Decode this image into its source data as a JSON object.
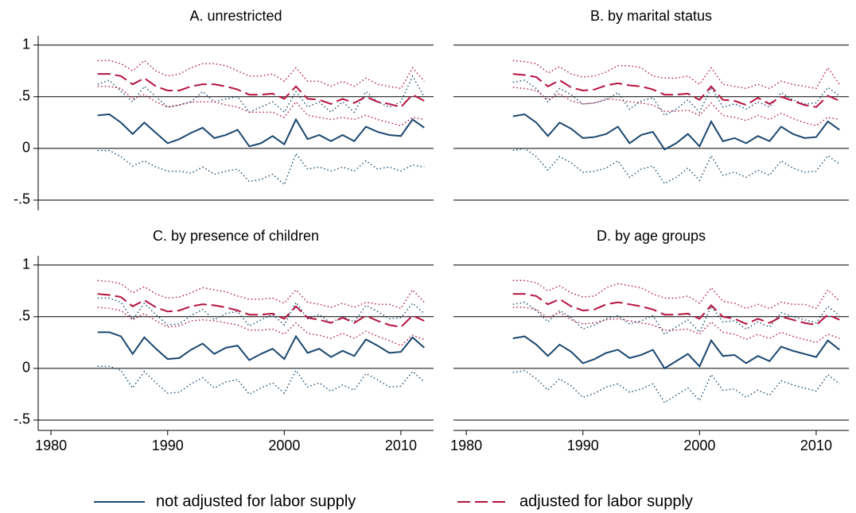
{
  "chart_data": [
    {
      "type": "line",
      "title": "A. unrestricted",
      "x": [
        1984,
        1985,
        1986,
        1987,
        1988,
        1989,
        1990,
        1991,
        1992,
        1993,
        1994,
        1995,
        1996,
        1997,
        1998,
        1999,
        2000,
        2001,
        2002,
        2003,
        2004,
        2005,
        2006,
        2007,
        2008,
        2009,
        2010,
        2011,
        2012
      ],
      "xlim": [
        1978.9,
        2012.8
      ],
      "ylim": [
        -0.6,
        1.09
      ],
      "yticks": [
        1,
        {
          "value": 0.5,
          "label": ".5"
        },
        0,
        {
          "value": -0.5,
          "label": "-.5"
        }
      ],
      "grid": true,
      "series": [
        {
          "name": "not adjusted for labor supply",
          "color": "#1a476f",
          "dash": "solid",
          "values": [
            0.32,
            0.33,
            0.25,
            0.14,
            0.25,
            0.15,
            0.05,
            0.09,
            0.15,
            0.2,
            0.1,
            0.13,
            0.18,
            0.02,
            0.05,
            0.12,
            0.04,
            0.28,
            0.09,
            0.13,
            0.07,
            0.13,
            0.07,
            0.21,
            0.16,
            0.13,
            0.12,
            0.28,
            0.2
          ]
        },
        {
          "name": "adjusted for labor supply",
          "color": "#b5123e",
          "dash": "dash",
          "values": [
            0.72,
            0.72,
            0.7,
            0.62,
            0.68,
            0.6,
            0.56,
            0.56,
            0.6,
            0.62,
            0.62,
            0.6,
            0.57,
            0.52,
            0.52,
            0.53,
            0.48,
            0.6,
            0.48,
            0.47,
            0.43,
            0.48,
            0.44,
            0.5,
            0.45,
            0.43,
            0.4,
            0.52,
            0.46
          ]
        },
        {
          "color": "#1a476f",
          "dash": "dot",
          "values": [
            0.62,
            0.66,
            0.55,
            0.45,
            0.6,
            0.5,
            0.4,
            0.42,
            0.45,
            0.55,
            0.45,
            0.48,
            0.5,
            0.35,
            0.4,
            0.45,
            0.35,
            0.55,
            0.4,
            0.45,
            0.35,
            0.45,
            0.35,
            0.55,
            0.45,
            0.4,
            0.45,
            0.7,
            0.5
          ]
        },
        {
          "color": "#1a476f",
          "dash": "dot",
          "values": [
            -0.02,
            -0.02,
            -0.08,
            -0.17,
            -0.12,
            -0.18,
            -0.22,
            -0.22,
            -0.24,
            -0.18,
            -0.25,
            -0.22,
            -0.2,
            -0.32,
            -0.3,
            -0.25,
            -0.35,
            -0.05,
            -0.2,
            -0.18,
            -0.22,
            -0.18,
            -0.22,
            -0.12,
            -0.2,
            -0.18,
            -0.22,
            -0.16,
            -0.18
          ]
        },
        {
          "color": "#b5123e",
          "dash": "dot",
          "values": [
            0.85,
            0.85,
            0.82,
            0.75,
            0.85,
            0.75,
            0.7,
            0.72,
            0.78,
            0.82,
            0.82,
            0.8,
            0.75,
            0.7,
            0.7,
            0.72,
            0.65,
            0.78,
            0.65,
            0.65,
            0.6,
            0.65,
            0.6,
            0.68,
            0.62,
            0.6,
            0.58,
            0.78,
            0.65
          ]
        },
        {
          "color": "#b5123e",
          "dash": "dot",
          "values": [
            0.6,
            0.6,
            0.58,
            0.48,
            0.52,
            0.45,
            0.4,
            0.42,
            0.45,
            0.45,
            0.45,
            0.42,
            0.4,
            0.35,
            0.35,
            0.35,
            0.3,
            0.45,
            0.32,
            0.3,
            0.28,
            0.3,
            0.28,
            0.32,
            0.28,
            0.25,
            0.22,
            0.3,
            0.28
          ]
        }
      ]
    },
    {
      "type": "line",
      "title": "B. by marital status",
      "x": [
        1984,
        1985,
        1986,
        1987,
        1988,
        1989,
        1990,
        1991,
        1992,
        1993,
        1994,
        1995,
        1996,
        1997,
        1998,
        1999,
        2000,
        2001,
        2002,
        2003,
        2004,
        2005,
        2006,
        2007,
        2008,
        2009,
        2010,
        2011,
        2012
      ],
      "xlim": [
        1978.9,
        2012.8
      ],
      "ylim": [
        -0.6,
        1.09
      ],
      "yticks": [
        1,
        0.5,
        0,
        -0.5
      ],
      "grid": true,
      "series": [
        {
          "color": "#1a476f",
          "dash": "solid",
          "values": [
            0.31,
            0.33,
            0.25,
            0.12,
            0.25,
            0.19,
            0.1,
            0.11,
            0.14,
            0.21,
            0.05,
            0.13,
            0.16,
            -0.01,
            0.05,
            0.14,
            0.02,
            0.26,
            0.07,
            0.1,
            0.05,
            0.12,
            0.07,
            0.21,
            0.14,
            0.1,
            0.11,
            0.26,
            0.18
          ]
        },
        {
          "color": "#b5123e",
          "dash": "dash",
          "values": [
            0.72,
            0.71,
            0.69,
            0.6,
            0.66,
            0.59,
            0.56,
            0.57,
            0.61,
            0.63,
            0.61,
            0.6,
            0.57,
            0.52,
            0.52,
            0.53,
            0.47,
            0.6,
            0.47,
            0.46,
            0.42,
            0.49,
            0.43,
            0.5,
            0.46,
            0.42,
            0.4,
            0.51,
            0.46
          ]
        },
        {
          "color": "#1a476f",
          "dash": "dot",
          "values": [
            0.64,
            0.66,
            0.58,
            0.45,
            0.58,
            0.52,
            0.43,
            0.44,
            0.47,
            0.54,
            0.38,
            0.46,
            0.49,
            0.32,
            0.38,
            0.47,
            0.35,
            0.59,
            0.4,
            0.43,
            0.38,
            0.45,
            0.4,
            0.54,
            0.47,
            0.43,
            0.44,
            0.59,
            0.51
          ]
        },
        {
          "color": "#1a476f",
          "dash": "dot",
          "values": [
            -0.02,
            0,
            -0.08,
            -0.21,
            -0.08,
            -0.14,
            -0.23,
            -0.22,
            -0.19,
            -0.12,
            -0.28,
            -0.2,
            -0.17,
            -0.34,
            -0.28,
            -0.19,
            -0.31,
            -0.07,
            -0.26,
            -0.23,
            -0.28,
            -0.21,
            -0.26,
            -0.12,
            -0.19,
            -0.23,
            -0.22,
            -0.07,
            -0.15
          ]
        },
        {
          "color": "#b5123e",
          "dash": "dot",
          "values": [
            0.85,
            0.84,
            0.82,
            0.73,
            0.79,
            0.72,
            0.69,
            0.7,
            0.74,
            0.8,
            0.8,
            0.78,
            0.7,
            0.68,
            0.68,
            0.7,
            0.62,
            0.78,
            0.62,
            0.6,
            0.58,
            0.62,
            0.58,
            0.65,
            0.62,
            0.6,
            0.58,
            0.78,
            0.62
          ]
        },
        {
          "color": "#b5123e",
          "dash": "dot",
          "values": [
            0.59,
            0.58,
            0.56,
            0.47,
            0.53,
            0.46,
            0.43,
            0.44,
            0.48,
            0.47,
            0.45,
            0.44,
            0.42,
            0.36,
            0.36,
            0.37,
            0.32,
            0.44,
            0.32,
            0.3,
            0.27,
            0.32,
            0.28,
            0.34,
            0.29,
            0.25,
            0.22,
            0.3,
            0.28
          ]
        }
      ]
    },
    {
      "type": "line",
      "title": "C. by presence of children",
      "x": [
        1984,
        1985,
        1986,
        1987,
        1988,
        1989,
        1990,
        1991,
        1992,
        1993,
        1994,
        1995,
        1996,
        1997,
        1998,
        1999,
        2000,
        2001,
        2002,
        2003,
        2004,
        2005,
        2006,
        2007,
        2008,
        2009,
        2010,
        2011,
        2012
      ],
      "xlim": [
        1978.9,
        2012.8
      ],
      "ylim": [
        -0.6,
        1.09
      ],
      "xticks": [
        1980,
        1990,
        2000,
        2010
      ],
      "yticks": [
        1,
        {
          "value": 0.5,
          "label": ".5"
        },
        0,
        {
          "value": -0.5,
          "label": "-.5"
        }
      ],
      "grid": true,
      "series": [
        {
          "color": "#1a476f",
          "dash": "solid",
          "values": [
            0.35,
            0.35,
            0.31,
            0.14,
            0.3,
            0.19,
            0.09,
            0.1,
            0.18,
            0.24,
            0.14,
            0.2,
            0.22,
            0.08,
            0.14,
            0.19,
            0.09,
            0.31,
            0.15,
            0.19,
            0.11,
            0.17,
            0.12,
            0.28,
            0.22,
            0.15,
            0.16,
            0.3,
            0.2
          ]
        },
        {
          "color": "#b5123e",
          "dash": "dash",
          "values": [
            0.72,
            0.71,
            0.69,
            0.6,
            0.66,
            0.59,
            0.55,
            0.56,
            0.6,
            0.62,
            0.61,
            0.59,
            0.56,
            0.52,
            0.52,
            0.53,
            0.48,
            0.6,
            0.49,
            0.47,
            0.44,
            0.49,
            0.44,
            0.51,
            0.46,
            0.42,
            0.4,
            0.51,
            0.46
          ]
        },
        {
          "color": "#1a476f",
          "dash": "dot",
          "values": [
            0.68,
            0.68,
            0.64,
            0.47,
            0.63,
            0.52,
            0.42,
            0.43,
            0.51,
            0.57,
            0.47,
            0.53,
            0.55,
            0.41,
            0.47,
            0.52,
            0.42,
            0.64,
            0.48,
            0.52,
            0.44,
            0.5,
            0.45,
            0.61,
            0.55,
            0.48,
            0.49,
            0.63,
            0.53
          ]
        },
        {
          "color": "#1a476f",
          "dash": "dot",
          "values": [
            0.02,
            0.02,
            -0.02,
            -0.19,
            -0.03,
            -0.14,
            -0.24,
            -0.23,
            -0.15,
            -0.09,
            -0.19,
            -0.13,
            -0.11,
            -0.25,
            -0.19,
            -0.14,
            -0.24,
            -0.02,
            -0.18,
            -0.14,
            -0.22,
            -0.16,
            -0.21,
            -0.05,
            -0.11,
            -0.18,
            -0.17,
            -0.03,
            -0.13
          ]
        },
        {
          "color": "#b5123e",
          "dash": "dot",
          "values": [
            0.85,
            0.84,
            0.82,
            0.73,
            0.79,
            0.72,
            0.68,
            0.69,
            0.73,
            0.78,
            0.76,
            0.74,
            0.7,
            0.67,
            0.67,
            0.68,
            0.63,
            0.76,
            0.64,
            0.62,
            0.59,
            0.63,
            0.59,
            0.64,
            0.62,
            0.62,
            0.58,
            0.76,
            0.64
          ]
        },
        {
          "color": "#b5123e",
          "dash": "dot",
          "values": [
            0.59,
            0.58,
            0.56,
            0.47,
            0.53,
            0.46,
            0.4,
            0.41,
            0.46,
            0.47,
            0.46,
            0.44,
            0.42,
            0.37,
            0.37,
            0.38,
            0.33,
            0.44,
            0.34,
            0.32,
            0.29,
            0.34,
            0.29,
            0.36,
            0.31,
            0.27,
            0.22,
            0.32,
            0.28
          ]
        }
      ]
    },
    {
      "type": "line",
      "title": "D. by age groups",
      "x": [
        1984,
        1985,
        1986,
        1987,
        1988,
        1989,
        1990,
        1991,
        1992,
        1993,
        1994,
        1995,
        1996,
        1997,
        1998,
        1999,
        2000,
        2001,
        2002,
        2003,
        2004,
        2005,
        2006,
        2007,
        2008,
        2009,
        2010,
        2011,
        2012
      ],
      "xlim": [
        1978.9,
        2012.8
      ],
      "ylim": [
        -0.6,
        1.09
      ],
      "xticks": [
        1980,
        1990,
        2000,
        2010
      ],
      "yticks": [
        1,
        0.5,
        0,
        -0.5
      ],
      "grid": true,
      "series": [
        {
          "color": "#1a476f",
          "dash": "solid",
          "values": [
            0.29,
            0.31,
            0.23,
            0.12,
            0.23,
            0.16,
            0.05,
            0.09,
            0.15,
            0.18,
            0.1,
            0.13,
            0.18,
            0,
            0.07,
            0.14,
            0.02,
            0.27,
            0.12,
            0.13,
            0.05,
            0.12,
            0.07,
            0.21,
            0.17,
            0.14,
            0.11,
            0.27,
            0.18
          ]
        },
        {
          "color": "#b5123e",
          "dash": "dash",
          "values": [
            0.72,
            0.72,
            0.7,
            0.62,
            0.67,
            0.6,
            0.56,
            0.57,
            0.62,
            0.64,
            0.62,
            0.6,
            0.57,
            0.52,
            0.52,
            0.53,
            0.48,
            0.61,
            0.5,
            0.48,
            0.43,
            0.48,
            0.44,
            0.5,
            0.47,
            0.44,
            0.42,
            0.52,
            0.47
          ]
        },
        {
          "color": "#1a476f",
          "dash": "dot",
          "values": [
            0.62,
            0.64,
            0.56,
            0.45,
            0.56,
            0.49,
            0.38,
            0.42,
            0.48,
            0.51,
            0.43,
            0.46,
            0.51,
            0.33,
            0.4,
            0.47,
            0.35,
            0.6,
            0.45,
            0.46,
            0.38,
            0.45,
            0.4,
            0.54,
            0.5,
            0.47,
            0.44,
            0.6,
            0.51
          ]
        },
        {
          "color": "#1a476f",
          "dash": "dot",
          "values": [
            -0.04,
            -0.02,
            -0.1,
            -0.21,
            -0.1,
            -0.17,
            -0.28,
            -0.24,
            -0.18,
            -0.15,
            -0.23,
            -0.2,
            -0.15,
            -0.33,
            -0.26,
            -0.19,
            -0.31,
            -0.06,
            -0.21,
            -0.2,
            -0.28,
            -0.21,
            -0.26,
            -0.12,
            -0.16,
            -0.19,
            -0.22,
            -0.06,
            -0.15
          ]
        },
        {
          "color": "#b5123e",
          "dash": "dot",
          "values": [
            0.85,
            0.85,
            0.83,
            0.75,
            0.8,
            0.73,
            0.69,
            0.7,
            0.78,
            0.82,
            0.8,
            0.78,
            0.72,
            0.68,
            0.68,
            0.7,
            0.63,
            0.78,
            0.65,
            0.63,
            0.58,
            0.62,
            0.58,
            0.64,
            0.62,
            0.62,
            0.58,
            0.76,
            0.65
          ]
        },
        {
          "color": "#b5123e",
          "dash": "dot",
          "values": [
            0.59,
            0.59,
            0.57,
            0.49,
            0.54,
            0.47,
            0.43,
            0.44,
            0.47,
            0.48,
            0.46,
            0.44,
            0.42,
            0.37,
            0.37,
            0.38,
            0.33,
            0.45,
            0.35,
            0.33,
            0.28,
            0.33,
            0.29,
            0.35,
            0.31,
            0.28,
            0.25,
            0.33,
            0.29
          ]
        }
      ]
    }
  ]
}
